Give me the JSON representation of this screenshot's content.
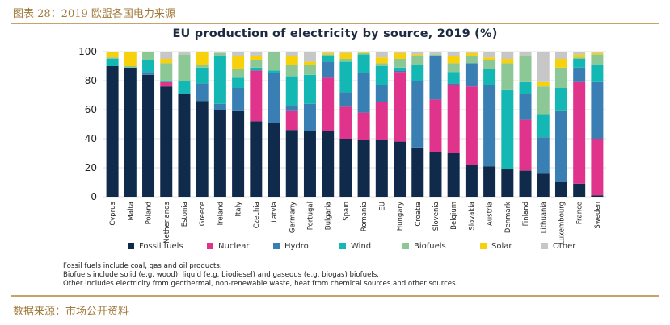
{
  "frame": {
    "title": "图表 28：2019 欧盟各国电力来源",
    "source": "数据来源：市场公开资料"
  },
  "colors": {
    "fossil": "#0f2a4a",
    "nuclear": "#e0338c",
    "hydro": "#3a7fb4",
    "wind": "#13b8b4",
    "biofuels": "#8cc896",
    "solar": "#f7d10c",
    "other": "#c7c7c7"
  },
  "chart_data": {
    "type": "bar",
    "stacked": true,
    "title": "EU production of electricity by source, 2019 (%)",
    "ylim": [
      0,
      100
    ],
    "yticks": [
      0,
      20,
      40,
      60,
      80,
      100
    ],
    "grid": true,
    "legend_position": "bottom",
    "categories": [
      "Cyprus",
      "Malta",
      "Poland",
      "Netherlands",
      "Estonia",
      "Greece",
      "Ireland",
      "Italy",
      "Czechia",
      "Latvia",
      "Germany",
      "Portugal",
      "Bulgaria",
      "Spain",
      "Romania",
      "EU",
      "Hungary",
      "Croatia",
      "Slovenia",
      "Belgium",
      "Slovakia",
      "Austria",
      "Denmark",
      "Finland",
      "Lithuania",
      "Luxembourg",
      "France",
      "Sweden"
    ],
    "series": [
      {
        "name": "Fossil fuels",
        "key": "fossil",
        "values": [
          90,
          89,
          84,
          76,
          71,
          66,
          60,
          59,
          52,
          51,
          46,
          45,
          45,
          40,
          39,
          39,
          38,
          34,
          31,
          30,
          22,
          21,
          19,
          18,
          16,
          10,
          9,
          1
        ]
      },
      {
        "name": "Nuclear",
        "key": "nuclear",
        "values": [
          0,
          0,
          0,
          3,
          0,
          0,
          0,
          0,
          35,
          0,
          13,
          0,
          37,
          22,
          19,
          26,
          48,
          0,
          36,
          47,
          54,
          0,
          0,
          35,
          0,
          0,
          70,
          39
        ]
      },
      {
        "name": "Hydro",
        "key": "hydro",
        "values": [
          0,
          0,
          2,
          0,
          0,
          12,
          4,
          16,
          0,
          34,
          4,
          19,
          11,
          10,
          27,
          12,
          1,
          46,
          30,
          1,
          16,
          56,
          0,
          18,
          25,
          49,
          10,
          39
        ]
      },
      {
        "name": "Wind",
        "key": "wind",
        "values": [
          5,
          0,
          8,
          1,
          9,
          11,
          33,
          7,
          2,
          2,
          20,
          20,
          4,
          21,
          13,
          13,
          2,
          11,
          0,
          8,
          0,
          11,
          55,
          8,
          16,
          16,
          6,
          12
        ]
      },
      {
        "name": "Biofuels",
        "key": "biofuels",
        "values": [
          1,
          1,
          6,
          12,
          18,
          2,
          2,
          6,
          5,
          13,
          8,
          7,
          1,
          2,
          1,
          2,
          6,
          6,
          1,
          6,
          5,
          6,
          18,
          18,
          19,
          14,
          1,
          7
        ]
      },
      {
        "name": "Solar",
        "key": "solar",
        "values": [
          4,
          10,
          0,
          3,
          0,
          9,
          0,
          9,
          3,
          0,
          6,
          2,
          1,
          4,
          1,
          4,
          4,
          1,
          0,
          5,
          2,
          2,
          3,
          0,
          3,
          6,
          2,
          1
        ]
      },
      {
        "name": "Other",
        "key": "other",
        "values": [
          0,
          0,
          0,
          5,
          2,
          0,
          1,
          3,
          3,
          0,
          3,
          7,
          1,
          1,
          0,
          4,
          1,
          2,
          2,
          3,
          1,
          4,
          5,
          3,
          21,
          5,
          2,
          1
        ]
      }
    ]
  },
  "notes": [
    "Fossil fuels include coal, gas and oil products.",
    "Biofuels include solid (e.g. wood), liquid (e.g. biodiesel) and gaseous (e.g. biogas) biofuels.",
    "Other includes electricity from geothermal, non-renewable waste, heat from chemical sources and other sources."
  ]
}
